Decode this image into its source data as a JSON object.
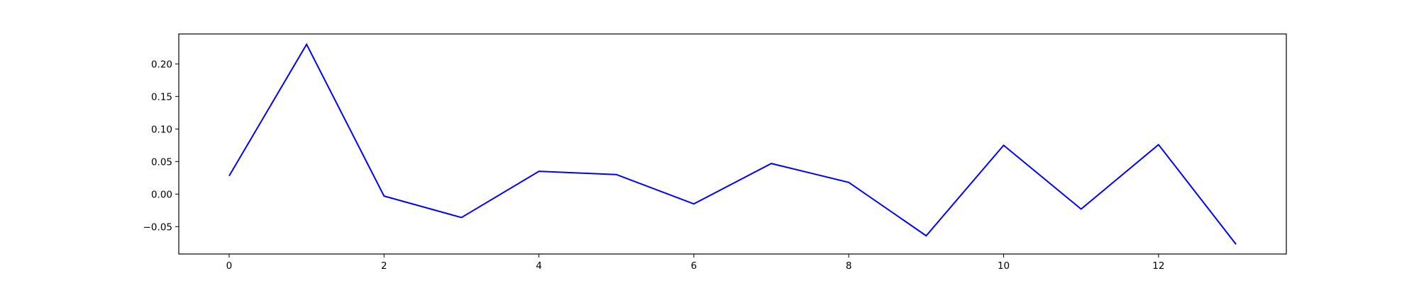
{
  "chart_data": {
    "type": "line",
    "title": "",
    "xlabel": "",
    "ylabel": "",
    "x": [
      0,
      1,
      2,
      3,
      4,
      5,
      6,
      7,
      8,
      9,
      10,
      11,
      12,
      13
    ],
    "series": [
      {
        "color": "#0000ff",
        "values": [
          0.028,
          0.23,
          -0.003,
          -0.036,
          0.035,
          0.03,
          -0.015,
          0.047,
          0.018,
          -0.064,
          0.075,
          -0.023,
          0.076,
          -0.077
        ]
      }
    ],
    "xlim": [
      -0.65,
      13.65
    ],
    "ylim": [
      -0.092,
      0.246
    ],
    "xticks": [
      0,
      2,
      4,
      6,
      8,
      10,
      12
    ],
    "xtick_labels": [
      "0",
      "2",
      "4",
      "6",
      "8",
      "10",
      "12"
    ],
    "yticks": [
      -0.05,
      0.0,
      0.05,
      0.1,
      0.15,
      0.2
    ],
    "ytick_labels": [
      "−0.05",
      "0.00",
      "0.05",
      "0.10",
      "0.15",
      "0.20"
    ],
    "grid": false,
    "legend": "none"
  }
}
